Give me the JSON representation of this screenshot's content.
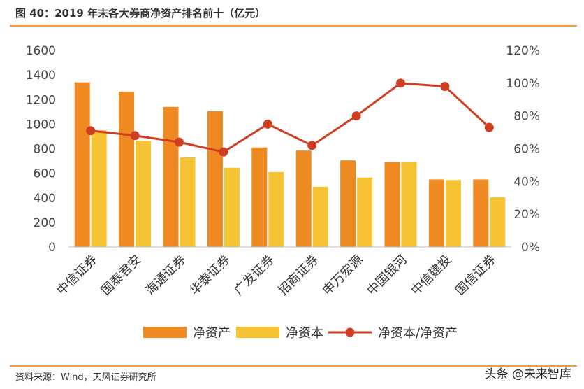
{
  "header": {
    "title": "图 40：2019 年末各大券商净资产排名前十（亿元）"
  },
  "footer": {
    "source": "资料来源：Wind，天风证券研究所",
    "watermark": "头条 @未来智库"
  },
  "colors": {
    "net_assets": "#EF8A22",
    "net_capital": "#F6C334",
    "ratio": "#D03E22",
    "rule": "#F29A3C"
  },
  "chart_data": {
    "type": "bar",
    "categories": [
      "中信证券",
      "国泰君安",
      "海通证券",
      "华泰证券",
      "广发证券",
      "招商证券",
      "申万宏源",
      "中国银河",
      "中信建投",
      "国信证券"
    ],
    "series": [
      {
        "name": "净资产",
        "type": "bar",
        "axis": "left",
        "values": [
          1340,
          1265,
          1140,
          1105,
          810,
          785,
          705,
          690,
          550,
          550
        ]
      },
      {
        "name": "净资本",
        "type": "bar",
        "axis": "left",
        "values": [
          950,
          865,
          730,
          645,
          610,
          490,
          565,
          690,
          545,
          405
        ]
      },
      {
        "name": "净资本/净资产",
        "type": "line",
        "axis": "right",
        "values": [
          0.71,
          0.68,
          0.64,
          0.58,
          0.75,
          0.62,
          0.8,
          1.0,
          0.98,
          0.73
        ]
      }
    ],
    "y_left": {
      "min": 0,
      "max": 1600,
      "ticks": [
        "0",
        "200",
        "400",
        "600",
        "800",
        "1000",
        "1200",
        "1400",
        "1600"
      ]
    },
    "y_right": {
      "min": 0,
      "max": 1.2,
      "ticks": [
        "0%",
        "20%",
        "40%",
        "60%",
        "80%",
        "100%",
        "120%"
      ]
    },
    "grid": false,
    "legend_position": "bottom"
  }
}
